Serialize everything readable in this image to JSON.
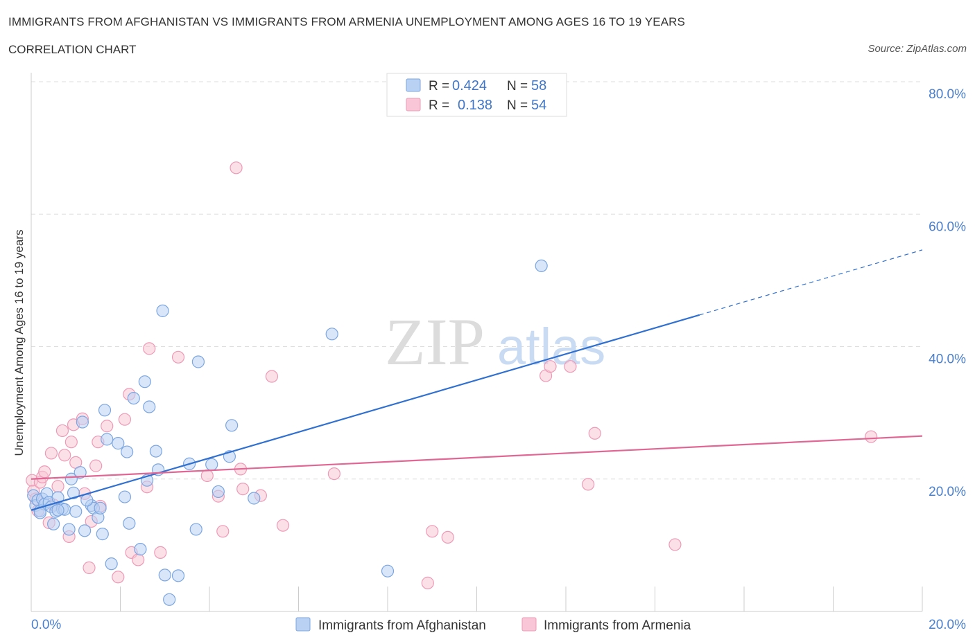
{
  "header": {
    "title": "IMMIGRANTS FROM AFGHANISTAN VS IMMIGRANTS FROM ARMENIA UNEMPLOYMENT AMONG AGES 16 TO 19 YEARS",
    "subtitle": "CORRELATION CHART",
    "source": "Source: ZipAtlas.com"
  },
  "watermark": {
    "zip": "ZIP",
    "atlas": "atlas"
  },
  "legend": {
    "r_label": "R =",
    "n_label": "N =",
    "series": [
      {
        "name": "Immigrants from Afghanistan",
        "r": "0.424",
        "n": "58"
      },
      {
        "name": "Immigrants from Armenia",
        "r": "0.138",
        "n": "54"
      }
    ]
  },
  "colors": {
    "afghanistan_fill": "#b9d2f4",
    "afghanistan_stroke": "#7ba6e0",
    "afghanistan_line": "#2f70d1",
    "armenia_fill": "#f8c6d6",
    "armenia_stroke": "#ee9ab6",
    "armenia_line": "#e06793",
    "grid": "#dedede",
    "tick_text": "#4a7fcc"
  },
  "chart_data": {
    "type": "scatter",
    "title": "IMMIGRANTS FROM AFGHANISTAN VS IMMIGRANTS FROM ARMENIA UNEMPLOYMENT AMONG AGES 16 TO 19 YEARS",
    "xlabel": "",
    "ylabel": "Unemployment Among Ages 16 to 19 years",
    "xlim": [
      0,
      20
    ],
    "ylim": [
      0,
      80
    ],
    "x_ticks": [
      "0.0%",
      "20.0%"
    ],
    "y_ticks": [
      {
        "value": 20,
        "label": "20.0%"
      },
      {
        "value": 40,
        "label": "40.0%"
      },
      {
        "value": 60,
        "label": "60.0%"
      },
      {
        "value": 80,
        "label": "80.0%"
      }
    ],
    "series": [
      {
        "name": "Immigrants from Afghanistan",
        "trend": {
          "x_start": 0,
          "y_start": 15.3,
          "x_solid_end": 15.0,
          "x_end": 20,
          "y_end": 54.6
        },
        "points": [
          [
            0.05,
            17.5
          ],
          [
            0.1,
            16.0
          ],
          [
            0.15,
            16.8
          ],
          [
            0.2,
            15.2
          ],
          [
            0.25,
            17.0
          ],
          [
            0.3,
            16.2
          ],
          [
            0.35,
            17.8
          ],
          [
            0.4,
            16.5
          ],
          [
            0.45,
            15.8
          ],
          [
            0.5,
            13.2
          ],
          [
            0.55,
            15.1
          ],
          [
            0.6,
            17.2
          ],
          [
            0.7,
            15.5
          ],
          [
            0.75,
            15.4
          ],
          [
            0.85,
            12.4
          ],
          [
            0.9,
            20.0
          ],
          [
            0.95,
            17.9
          ],
          [
            1.0,
            15.1
          ],
          [
            1.1,
            21.0
          ],
          [
            1.15,
            28.6
          ],
          [
            1.2,
            12.2
          ],
          [
            1.35,
            16.0
          ],
          [
            1.4,
            15.6
          ],
          [
            1.5,
            14.2
          ],
          [
            1.55,
            15.6
          ],
          [
            1.6,
            11.7
          ],
          [
            1.65,
            30.4
          ],
          [
            1.7,
            26.0
          ],
          [
            1.8,
            7.2
          ],
          [
            1.95,
            25.4
          ],
          [
            2.1,
            17.3
          ],
          [
            2.15,
            24.1
          ],
          [
            2.2,
            13.3
          ],
          [
            2.3,
            32.2
          ],
          [
            2.45,
            9.4
          ],
          [
            2.55,
            34.7
          ],
          [
            2.6,
            19.8
          ],
          [
            2.65,
            30.9
          ],
          [
            2.8,
            24.2
          ],
          [
            2.85,
            21.4
          ],
          [
            2.95,
            45.4
          ],
          [
            3.0,
            5.5
          ],
          [
            3.1,
            1.8
          ],
          [
            3.3,
            5.4
          ],
          [
            3.55,
            22.3
          ],
          [
            3.7,
            12.4
          ],
          [
            3.75,
            37.7
          ],
          [
            4.05,
            22.2
          ],
          [
            4.2,
            18.1
          ],
          [
            4.45,
            23.4
          ],
          [
            4.5,
            28.1
          ],
          [
            5.0,
            17.1
          ],
          [
            6.75,
            41.9
          ],
          [
            8.0,
            6.1
          ],
          [
            11.45,
            52.2
          ],
          [
            0.2,
            14.9
          ],
          [
            0.6,
            15.3
          ],
          [
            1.25,
            16.8
          ]
        ]
      },
      {
        "name": "Immigrants from Armenia",
        "trend": {
          "x_start": 0,
          "y_start": 20.0,
          "x_end": 20,
          "y_end": 26.5
        },
        "points": [
          [
            0.02,
            19.8
          ],
          [
            0.05,
            18.2
          ],
          [
            0.1,
            17.0
          ],
          [
            0.15,
            15.2
          ],
          [
            0.2,
            19.5
          ],
          [
            0.25,
            20.3
          ],
          [
            0.3,
            21.1
          ],
          [
            0.4,
            13.4
          ],
          [
            0.45,
            23.9
          ],
          [
            0.5,
            16.1
          ],
          [
            0.6,
            18.9
          ],
          [
            0.7,
            27.3
          ],
          [
            0.75,
            23.6
          ],
          [
            0.85,
            11.3
          ],
          [
            0.9,
            25.6
          ],
          [
            0.95,
            28.2
          ],
          [
            1.0,
            22.5
          ],
          [
            1.15,
            29.1
          ],
          [
            1.2,
            17.8
          ],
          [
            1.3,
            6.6
          ],
          [
            1.35,
            13.6
          ],
          [
            1.45,
            22.0
          ],
          [
            1.5,
            25.6
          ],
          [
            1.55,
            15.9
          ],
          [
            1.7,
            28.0
          ],
          [
            1.95,
            5.2
          ],
          [
            2.1,
            29.0
          ],
          [
            2.2,
            32.8
          ],
          [
            2.25,
            8.9
          ],
          [
            2.4,
            7.8
          ],
          [
            2.6,
            18.8
          ],
          [
            2.65,
            39.7
          ],
          [
            2.9,
            8.9
          ],
          [
            3.3,
            38.4
          ],
          [
            3.95,
            20.5
          ],
          [
            4.2,
            17.4
          ],
          [
            4.3,
            12.1
          ],
          [
            4.6,
            67.0
          ],
          [
            4.7,
            21.5
          ],
          [
            4.75,
            18.5
          ],
          [
            5.15,
            17.5
          ],
          [
            5.4,
            35.5
          ],
          [
            5.65,
            13.0
          ],
          [
            6.8,
            20.8
          ],
          [
            9.0,
            12.1
          ],
          [
            9.35,
            11.2
          ],
          [
            8.9,
            4.3
          ],
          [
            11.55,
            35.6
          ],
          [
            11.65,
            37.0
          ],
          [
            12.1,
            37.0
          ],
          [
            12.5,
            19.2
          ],
          [
            12.65,
            26.9
          ],
          [
            14.45,
            10.1
          ],
          [
            18.85,
            26.4
          ]
        ]
      }
    ]
  }
}
